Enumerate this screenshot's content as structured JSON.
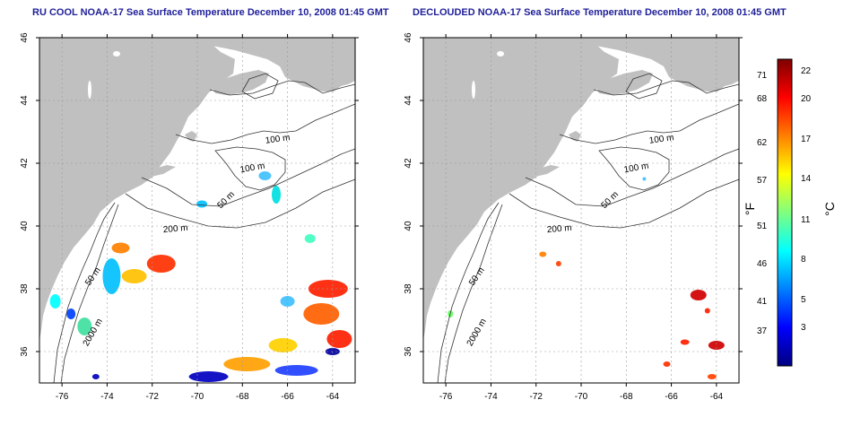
{
  "maps": [
    {
      "title": "RU COOL NOAA-17 Sea Surface Temperature December 10, 2008 01:45 GMT",
      "contour_labels": [
        "100 m",
        "100 m",
        "50 m",
        "200 m",
        "50 m",
        "2000 m"
      ]
    },
    {
      "title": "DECLOUDED NOAA-17 Sea Surface Temperature December 10, 2008 01:45 GMT",
      "contour_labels": [
        "100 m",
        "100 m",
        "50 m",
        "200 m",
        "50 m",
        "2000 m"
      ]
    }
  ],
  "axes": {
    "lat_ticks": [
      "46",
      "44",
      "42",
      "40",
      "38",
      "36"
    ],
    "lon_ticks": [
      "-76",
      "-74",
      "-72",
      "-70",
      "-68",
      "-66",
      "-64"
    ]
  },
  "colorbar": {
    "fahrenheit_ticks": [
      "71",
      "68",
      "62",
      "57",
      "51",
      "46",
      "41",
      "37"
    ],
    "celsius_ticks": [
      "22",
      "20",
      "17",
      "14",
      "11",
      "8",
      "5",
      "3"
    ],
    "fahrenheit_unit": "°F",
    "celsius_unit": "°C",
    "colors": [
      "#00007f",
      "#0000ff",
      "#007fff",
      "#00ffff",
      "#7fff7f",
      "#ffff00",
      "#ff7f00",
      "#ff0000",
      "#7f0000"
    ]
  },
  "colors": {
    "land": "#c0c0c0",
    "title": "#1f1f9a"
  }
}
